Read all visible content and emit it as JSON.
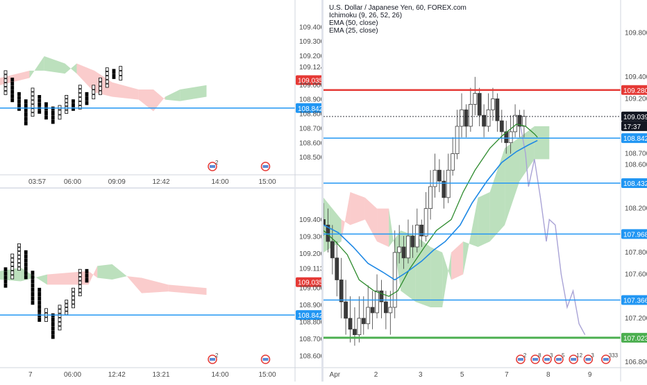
{
  "colors": {
    "ema50": "#1e88e5",
    "ema25": "#2e8b2e",
    "cloud_bull": "#a5d6a7",
    "cloud_bear": "#f8bbbb",
    "support_blue": "#2196f3",
    "resistance_red": "#e53935",
    "support_green": "#4caf50",
    "projection": "#a9a3d6"
  },
  "icons": [
    "flag-us-icon",
    "event-icon"
  ],
  "chart_data": [
    {
      "type": "point-and-figure",
      "ylim": [
        108.4,
        109.55
      ],
      "yticks": [
        "109.400",
        "109.300",
        "109.200",
        "109.124",
        "109.000",
        "108.900",
        "108.800",
        "108.700",
        "108.600",
        "108.500"
      ],
      "xticks": [
        "03:57",
        "06:00",
        "09:09",
        "12:42",
        "14:00",
        "15:00"
      ],
      "price_labels": [
        {
          "value": 109.035,
          "text": "109.035",
          "color": "#e53935"
        },
        {
          "value": 108.842,
          "text": "108.842",
          "color": "#2196f3"
        }
      ],
      "event_badges": [
        "2"
      ],
      "columns": [
        {
          "dir": "x",
          "lo": 108.93,
          "hi": 109.1
        },
        {
          "dir": "o",
          "lo": 108.88,
          "hi": 109.05
        },
        {
          "dir": "o",
          "lo": 108.82,
          "hi": 108.95
        },
        {
          "dir": "o",
          "lo": 108.72,
          "hi": 108.9
        },
        {
          "dir": "x",
          "lo": 108.78,
          "hi": 108.98
        },
        {
          "dir": "o",
          "lo": 108.8,
          "hi": 108.93
        },
        {
          "dir": "o",
          "lo": 108.76,
          "hi": 108.88
        },
        {
          "dir": "o",
          "lo": 108.73,
          "hi": 108.85
        },
        {
          "dir": "x",
          "lo": 108.76,
          "hi": 108.86
        },
        {
          "dir": "x",
          "lo": 108.8,
          "hi": 108.93
        },
        {
          "dir": "o",
          "lo": 108.82,
          "hi": 108.9
        },
        {
          "dir": "x",
          "lo": 108.83,
          "hi": 109.0
        },
        {
          "dir": "o",
          "lo": 108.86,
          "hi": 108.95
        },
        {
          "dir": "x",
          "lo": 108.9,
          "hi": 109.0
        },
        {
          "dir": "x",
          "lo": 108.93,
          "hi": 109.05
        },
        {
          "dir": "x",
          "lo": 108.98,
          "hi": 109.12
        },
        {
          "dir": "o",
          "lo": 109.04,
          "hi": 109.11
        },
        {
          "dir": "x",
          "lo": 109.03,
          "hi": 109.13
        }
      ],
      "cloud": [
        {
          "x": 0.0,
          "a": 109.0,
          "b": 109.05
        },
        {
          "x": 0.1,
          "a": 109.05,
          "b": 109.1
        },
        {
          "x": 0.15,
          "a": 109.2,
          "b": 109.1
        },
        {
          "x": 0.22,
          "a": 109.15,
          "b": 109.08
        },
        {
          "x": 0.26,
          "a": 109.08,
          "b": 109.15
        },
        {
          "x": 0.32,
          "a": 108.95,
          "b": 109.1
        },
        {
          "x": 0.38,
          "a": 108.92,
          "b": 109.02
        },
        {
          "x": 0.47,
          "a": 108.9,
          "b": 108.97
        },
        {
          "x": 0.52,
          "a": 108.82,
          "b": 108.97
        },
        {
          "x": 0.56,
          "a": 108.92,
          "b": 108.9
        },
        {
          "x": 0.61,
          "a": 108.97,
          "b": 108.89
        },
        {
          "x": 0.7,
          "a": 109.0,
          "b": 108.92
        }
      ]
    },
    {
      "type": "point-and-figure",
      "ylim": [
        108.55,
        109.55
      ],
      "yticks": [
        "109.400",
        "109.300",
        "109.200",
        "109.113",
        "109.000",
        "108.900",
        "108.800",
        "108.700",
        "108.600"
      ],
      "xticks": [
        "7",
        "06:00",
        "12:42",
        "13:21",
        "14:00",
        "15:00"
      ],
      "price_labels": [
        {
          "value": 109.035,
          "text": "109.035",
          "color": "#e53935"
        },
        {
          "value": 108.842,
          "text": "108.842",
          "color": "#2196f3"
        }
      ],
      "event_badges": [
        "2"
      ],
      "columns": [
        {
          "dir": "o",
          "lo": 109.0,
          "hi": 109.12
        },
        {
          "dir": "x",
          "lo": 109.05,
          "hi": 109.2
        },
        {
          "dir": "x",
          "lo": 109.1,
          "hi": 109.26
        },
        {
          "dir": "o",
          "lo": 109.05,
          "hi": 109.22
        },
        {
          "dir": "o",
          "lo": 108.9,
          "hi": 109.1
        },
        {
          "dir": "o",
          "lo": 108.8,
          "hi": 109.0
        },
        {
          "dir": "x",
          "lo": 108.8,
          "hi": 108.88
        },
        {
          "dir": "o",
          "lo": 108.7,
          "hi": 108.85
        },
        {
          "dir": "x",
          "lo": 108.75,
          "hi": 108.9
        },
        {
          "dir": "x",
          "lo": 108.84,
          "hi": 108.93
        },
        {
          "dir": "x",
          "lo": 108.88,
          "hi": 109.0
        },
        {
          "dir": "x",
          "lo": 108.95,
          "hi": 109.11
        },
        {
          "dir": "o",
          "lo": 109.03,
          "hi": 109.11
        }
      ],
      "cloud": [
        {
          "x": 0.0,
          "a": 109.1,
          "b": 109.05
        },
        {
          "x": 0.07,
          "a": 109.12,
          "b": 109.04
        },
        {
          "x": 0.16,
          "a": 109.02,
          "b": 109.08
        },
        {
          "x": 0.3,
          "a": 109.02,
          "b": 109.1
        },
        {
          "x": 0.33,
          "a": 109.13,
          "b": 109.06
        },
        {
          "x": 0.38,
          "a": 109.14,
          "b": 109.05
        },
        {
          "x": 0.43,
          "a": 109.07,
          "b": 109.07
        },
        {
          "x": 0.48,
          "a": 108.97,
          "b": 109.06
        },
        {
          "x": 0.57,
          "a": 108.98,
          "b": 109.02
        },
        {
          "x": 0.7,
          "a": 108.96,
          "b": 109.0
        }
      ]
    },
    {
      "type": "candlestick",
      "title": "U.S. Dollar / Japanese Yen, 60, FOREX.com",
      "indicators": [
        "Ichimoku (9, 26, 52, 26)",
        "EMA (50, close)",
        "EMA (25, close)"
      ],
      "ylim": [
        106.75,
        110.05
      ],
      "yticks": [
        "109.800",
        "109.400",
        "109.200",
        "108.700",
        "108.600",
        "108.200",
        "107.800",
        "107.600",
        "107.200",
        "106.800"
      ],
      "xticks": [
        "Apr",
        "2",
        "3",
        "5",
        "7",
        "8",
        "9"
      ],
      "x_positions": [
        0.02,
        0.17,
        0.32,
        0.46,
        0.61,
        0.75,
        0.89
      ],
      "time_label": "17:37",
      "levels": [
        {
          "value": 109.28,
          "text": "109.280",
          "color": "#e53935",
          "width": 2.5,
          "label_bg": "#e53935"
        },
        {
          "value": 109.039,
          "text": "109.039",
          "color": "#131722",
          "width": 0.8,
          "dashed": true,
          "label_bg": "#131722"
        },
        {
          "value": 108.842,
          "text": "108.842",
          "color": "#2196f3",
          "width": 1.5,
          "label_bg": "#2196f3"
        },
        {
          "value": 108.432,
          "text": "108.432",
          "color": "#2196f3",
          "width": 1.5,
          "label_bg": "#2196f3"
        },
        {
          "value": 107.968,
          "text": "107.968",
          "color": "#2196f3",
          "width": 1.5,
          "label_bg": "#2196f3"
        },
        {
          "value": 107.366,
          "text": "107.366",
          "color": "#2196f3",
          "width": 1.5,
          "label_bg": "#2196f3"
        },
        {
          "value": 107.023,
          "text": "107.023",
          "color": "#4caf50",
          "width": 3,
          "label_bg": "#4caf50"
        }
      ],
      "event_badges": [
        "2",
        "8",
        "3",
        "5",
        "12",
        "3",
        "333"
      ],
      "ema25": [
        [
          0.0,
          108.0
        ],
        [
          0.04,
          107.9
        ],
        [
          0.08,
          107.78
        ],
        [
          0.12,
          107.55
        ],
        [
          0.17,
          107.45
        ],
        [
          0.22,
          107.4
        ],
        [
          0.25,
          107.45
        ],
        [
          0.29,
          107.65
        ],
        [
          0.34,
          107.85
        ],
        [
          0.38,
          108.0
        ],
        [
          0.43,
          108.1
        ],
        [
          0.47,
          108.35
        ],
        [
          0.51,
          108.55
        ],
        [
          0.56,
          108.75
        ],
        [
          0.6,
          108.86
        ],
        [
          0.65,
          108.97
        ],
        [
          0.68,
          108.95
        ],
        [
          0.71,
          108.88
        ],
        [
          0.72,
          108.85
        ]
      ],
      "ema50": [
        [
          0.0,
          108.05
        ],
        [
          0.05,
          107.98
        ],
        [
          0.1,
          107.85
        ],
        [
          0.15,
          107.7
        ],
        [
          0.2,
          107.62
        ],
        [
          0.24,
          107.55
        ],
        [
          0.28,
          107.62
        ],
        [
          0.33,
          107.72
        ],
        [
          0.37,
          107.82
        ],
        [
          0.41,
          107.9
        ],
        [
          0.46,
          108.05
        ],
        [
          0.5,
          108.25
        ],
        [
          0.55,
          108.45
        ],
        [
          0.6,
          108.62
        ],
        [
          0.65,
          108.72
        ],
        [
          0.69,
          108.78
        ],
        [
          0.72,
          108.82
        ]
      ],
      "candles": [
        [
          0.0,
          108.1,
          108.05,
          108.25,
          107.95
        ],
        [
          0.015,
          108.05,
          107.9,
          108.2,
          107.8
        ],
        [
          0.03,
          107.9,
          107.75,
          108.05,
          107.6
        ],
        [
          0.045,
          107.75,
          107.55,
          107.9,
          107.4
        ],
        [
          0.06,
          107.55,
          107.35,
          107.75,
          107.2
        ],
        [
          0.075,
          107.35,
          107.2,
          107.55,
          107.05
        ],
        [
          0.09,
          107.2,
          107.1,
          107.4,
          106.98
        ],
        [
          0.105,
          107.1,
          107.05,
          107.3,
          106.95
        ],
        [
          0.12,
          107.05,
          107.2,
          107.4,
          106.98
        ],
        [
          0.135,
          107.2,
          107.15,
          107.4,
          107.05
        ],
        [
          0.15,
          107.15,
          107.3,
          107.5,
          107.1
        ],
        [
          0.165,
          107.3,
          107.25,
          107.45,
          107.1
        ],
        [
          0.18,
          107.25,
          107.45,
          107.6,
          107.2
        ],
        [
          0.195,
          107.45,
          107.35,
          107.55,
          107.2
        ],
        [
          0.21,
          107.35,
          107.25,
          107.45,
          107.1
        ],
        [
          0.225,
          107.25,
          107.3,
          107.45,
          107.05
        ],
        [
          0.24,
          107.3,
          107.8,
          108.0,
          107.2
        ],
        [
          0.255,
          107.8,
          107.85,
          108.05,
          107.7
        ],
        [
          0.27,
          107.85,
          107.75,
          107.95,
          107.65
        ],
        [
          0.285,
          107.75,
          107.95,
          108.1,
          107.7
        ],
        [
          0.3,
          107.95,
          107.85,
          108.05,
          107.75
        ],
        [
          0.315,
          107.85,
          108.05,
          108.2,
          107.8
        ],
        [
          0.33,
          108.05,
          107.95,
          108.1,
          107.85
        ],
        [
          0.345,
          107.95,
          108.2,
          108.35,
          107.9
        ],
        [
          0.36,
          108.2,
          108.4,
          108.55,
          108.1
        ],
        [
          0.375,
          108.4,
          108.55,
          108.7,
          108.3
        ],
        [
          0.39,
          108.55,
          108.45,
          108.65,
          108.35
        ],
        [
          0.405,
          108.45,
          108.3,
          108.55,
          108.2
        ],
        [
          0.42,
          108.3,
          108.55,
          108.7,
          108.25
        ],
        [
          0.435,
          108.55,
          108.7,
          108.85,
          108.5
        ],
        [
          0.45,
          108.7,
          108.95,
          109.1,
          108.65
        ],
        [
          0.465,
          108.95,
          109.1,
          109.25,
          108.85
        ],
        [
          0.48,
          109.1,
          108.95,
          109.15,
          108.85
        ],
        [
          0.495,
          108.95,
          109.15,
          109.3,
          108.9
        ],
        [
          0.51,
          109.15,
          109.25,
          109.4,
          109.05
        ],
        [
          0.525,
          109.25,
          109.05,
          109.3,
          108.95
        ],
        [
          0.54,
          109.05,
          108.95,
          109.15,
          108.85
        ],
        [
          0.555,
          108.95,
          109.1,
          109.25,
          108.9
        ],
        [
          0.57,
          109.1,
          109.2,
          109.3,
          109.0
        ],
        [
          0.585,
          109.2,
          109.0,
          109.25,
          108.9
        ],
        [
          0.6,
          109.0,
          108.9,
          109.1,
          108.8
        ],
        [
          0.615,
          108.9,
          108.8,
          109.0,
          108.7
        ],
        [
          0.63,
          108.8,
          108.9,
          109.05,
          108.7
        ],
        [
          0.645,
          108.9,
          109.05,
          109.15,
          108.85
        ],
        [
          0.66,
          109.05,
          108.95,
          109.1,
          108.85
        ],
        [
          0.675,
          108.95,
          109.04,
          109.1,
          108.85
        ]
      ],
      "cloud": [
        {
          "x": 0.0,
          "a": 108.3,
          "b": 107.8
        },
        {
          "x": 0.06,
          "a": 108.1,
          "b": 107.9
        },
        {
          "x": 0.09,
          "a": 108.05,
          "b": 108.35
        },
        {
          "x": 0.14,
          "a": 108.1,
          "b": 108.3
        },
        {
          "x": 0.18,
          "a": 107.9,
          "b": 108.2
        },
        {
          "x": 0.22,
          "a": 107.85,
          "b": 108.2
        },
        {
          "x": 0.26,
          "a": 108.0,
          "b": 107.45
        },
        {
          "x": 0.31,
          "a": 107.95,
          "b": 107.35
        },
        {
          "x": 0.36,
          "a": 107.85,
          "b": 107.3
        },
        {
          "x": 0.4,
          "a": 107.8,
          "b": 107.3
        },
        {
          "x": 0.43,
          "a": 107.55,
          "b": 107.8
        },
        {
          "x": 0.47,
          "a": 107.6,
          "b": 107.9
        },
        {
          "x": 0.52,
          "a": 108.3,
          "b": 107.85
        },
        {
          "x": 0.56,
          "a": 108.35,
          "b": 107.9
        },
        {
          "x": 0.61,
          "a": 108.75,
          "b": 108.05
        },
        {
          "x": 0.66,
          "a": 108.85,
          "b": 108.45
        },
        {
          "x": 0.71,
          "a": 108.95,
          "b": 108.65
        },
        {
          "x": 0.76,
          "a": 108.95,
          "b": 108.65
        }
      ],
      "projection": [
        [
          0.66,
          109.0
        ],
        [
          0.68,
          108.7
        ],
        [
          0.69,
          108.4
        ],
        [
          0.71,
          108.65
        ],
        [
          0.73,
          108.3
        ],
        [
          0.75,
          107.9
        ],
        [
          0.76,
          108.1
        ],
        [
          0.78,
          108.05
        ],
        [
          0.8,
          107.6
        ],
        [
          0.82,
          107.3
        ],
        [
          0.84,
          107.45
        ],
        [
          0.86,
          107.15
        ],
        [
          0.88,
          107.05
        ]
      ]
    }
  ]
}
